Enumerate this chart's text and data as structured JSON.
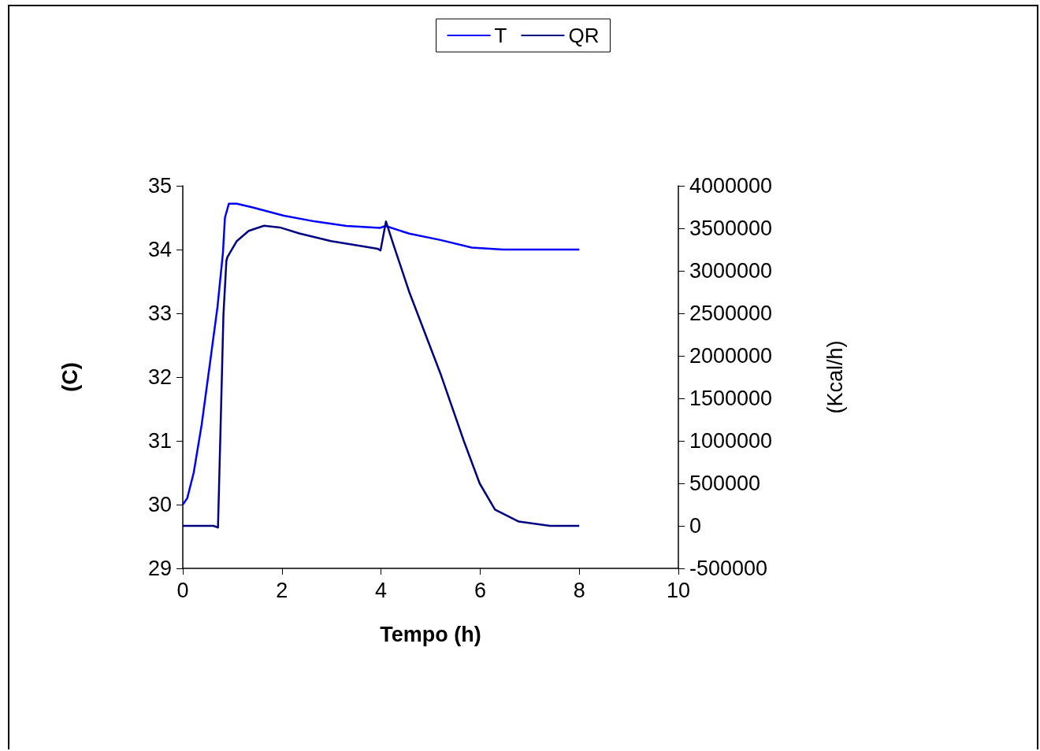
{
  "chart_data": {
    "type": "line",
    "xlabel": "Tempo (h)",
    "ylabel": "(C)",
    "y2label": "(Kcal/h)",
    "xlim": [
      0,
      10
    ],
    "xticks": [
      0,
      2,
      4,
      6,
      8,
      10
    ],
    "ylim": [
      29,
      35
    ],
    "yticks": [
      29,
      30,
      31,
      32,
      33,
      34,
      35
    ],
    "y2lim": [
      -500000,
      4000000
    ],
    "y2ticks": [
      -500000,
      0,
      500000,
      1000000,
      1500000,
      2000000,
      2500000,
      3000000,
      3500000,
      4000000
    ],
    "legend": "top",
    "grid": false,
    "marker": "none",
    "line_style": "solid",
    "series": [
      {
        "name": "T",
        "color": "#0000ff",
        "x": [
          0,
          0.09,
          0.22,
          0.38,
          0.54,
          0.7,
          0.81,
          0.85,
          0.93,
          1.09,
          1.41,
          2.04,
          2.67,
          3.3,
          3.98,
          4.09,
          4.57,
          5.2,
          5.83,
          6.46,
          8
        ],
        "values": [
          30.0,
          30.1,
          30.5,
          31.25,
          32.17,
          33.1,
          33.95,
          34.5,
          34.72,
          34.72,
          34.66,
          34.53,
          34.44,
          34.37,
          34.34,
          34.37,
          34.25,
          34.15,
          34.03,
          34.0,
          34.0
        ]
      },
      {
        "name": "QR",
        "color": "#000080",
        "axis": "y2",
        "x": [
          0,
          0.62,
          0.71,
          0.76,
          0.82,
          0.88,
          0.9,
          1.09,
          1.33,
          1.64,
          1.96,
          2.35,
          2.99,
          3.62,
          3.93,
          3.99,
          4.1,
          4.25,
          4.57,
          5.2,
          5.67,
          5.99,
          6.3,
          6.78,
          7.41,
          8
        ],
        "values": [
          0,
          0,
          -20000,
          1100000,
          2480000,
          3120000,
          3160000,
          3350000,
          3470000,
          3530000,
          3510000,
          3440000,
          3350000,
          3290000,
          3260000,
          3240000,
          3580000,
          3310000,
          2750000,
          1790000,
          1000000,
          500000,
          190000,
          50000,
          0,
          0
        ]
      }
    ]
  }
}
